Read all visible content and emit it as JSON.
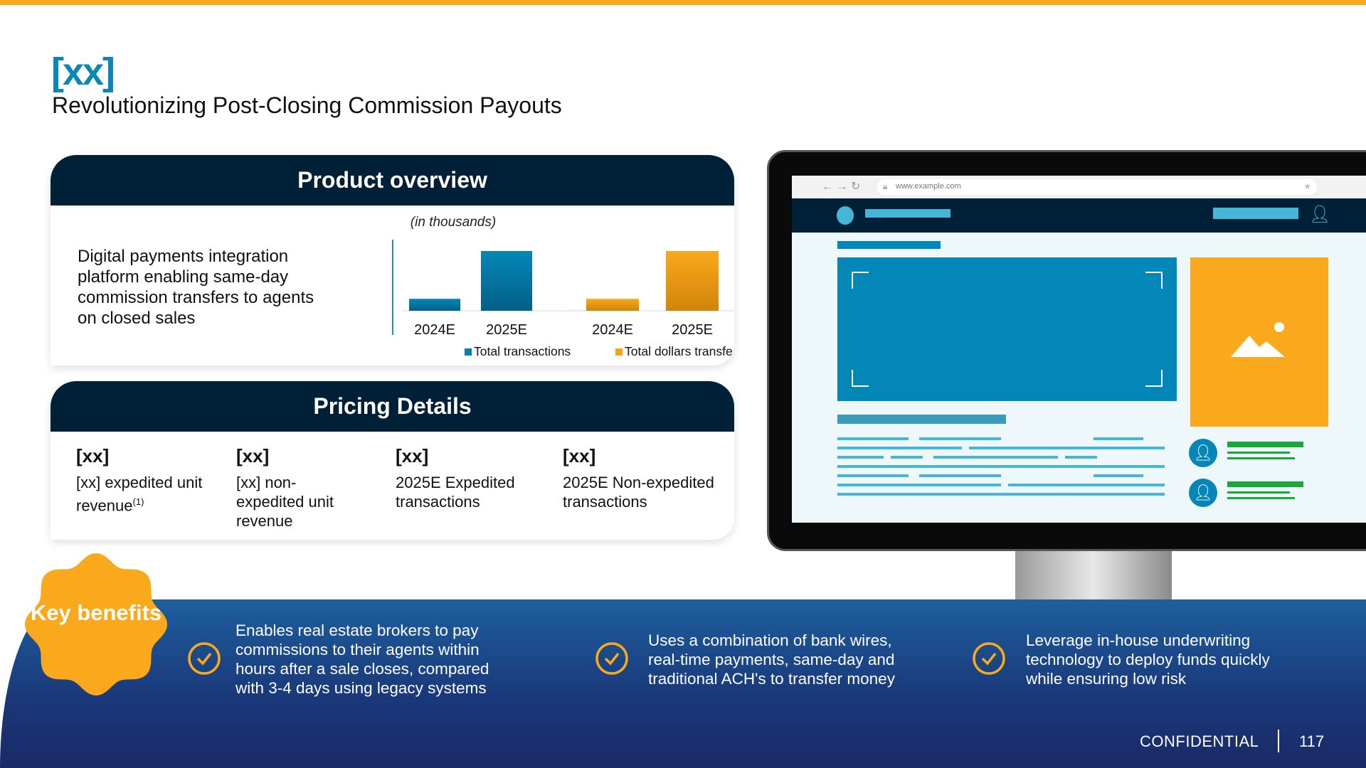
{
  "logo": "[xx]",
  "title": "Revolutionizing Post-Closing Commission Payouts",
  "product": {
    "header": "Product overview",
    "description": "Digital payments integration platform enabling same-day commission transfers to agents on closed sales"
  },
  "chart_data": {
    "type": "bar",
    "subtitle": "(in thousands)",
    "groups": [
      {
        "name": "Total transactions",
        "color": "#0a7fae",
        "categories": [
          "2024E",
          "2025E"
        ],
        "values": [
          20,
          100
        ]
      },
      {
        "name": "Total dollars transferred",
        "color": "#f5a318",
        "categories": [
          "2024E",
          "2025E"
        ],
        "values": [
          20,
          100
        ]
      }
    ]
  },
  "pricing": {
    "header": "Pricing Details",
    "items": [
      {
        "value": "[xx]",
        "label": "[xx] expedited unit revenue",
        "sup": "(1)"
      },
      {
        "value": "[xx]",
        "label": "[xx] non-expedited unit revenue"
      },
      {
        "value": "[xx]",
        "label": "2025E Expedited transactions"
      },
      {
        "value": "[xx]",
        "label": "2025E Non-expedited transactions"
      }
    ]
  },
  "browser": {
    "url": "www.example.com"
  },
  "benefits": {
    "badge": "Key benefits",
    "items": [
      "Enables real estate brokers to pay commissions to their agents within hours after a sale closes, compared with 3-4 days using legacy systems",
      "Uses a combination of bank wires, real-time payments, same-day and traditional ACH's to transfer money",
      "Leverage in-house underwriting technology to deploy funds quickly while ensuring low risk"
    ]
  },
  "footer": {
    "confidential": "CONFIDENTIAL",
    "page": "117"
  },
  "colors": {
    "accent": "#f9a91b",
    "brand_blue": "#0b87b5",
    "navy": "#002038"
  }
}
